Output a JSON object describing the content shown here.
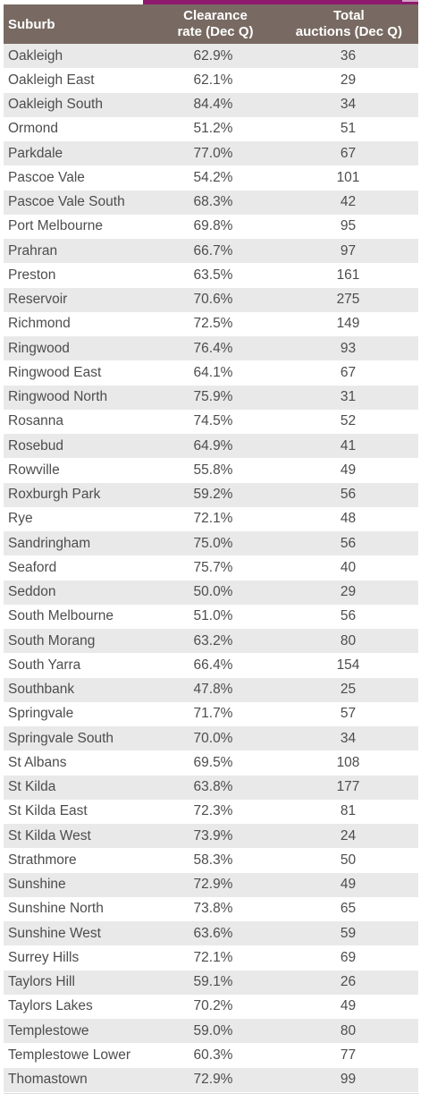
{
  "header": {
    "suburb": "Suburb",
    "clearance_line1": "Clearance",
    "clearance_line2": "rate (Dec Q)",
    "auctions_line1": "Total",
    "auctions_line2": "auctions (Dec Q)"
  },
  "rows": [
    {
      "suburb": "Oakleigh",
      "rate": "62.9%",
      "auctions": "36"
    },
    {
      "suburb": "Oakleigh East",
      "rate": "62.1%",
      "auctions": "29"
    },
    {
      "suburb": "Oakleigh South",
      "rate": "84.4%",
      "auctions": "34"
    },
    {
      "suburb": "Ormond",
      "rate": "51.2%",
      "auctions": "51"
    },
    {
      "suburb": "Parkdale",
      "rate": "77.0%",
      "auctions": "67"
    },
    {
      "suburb": "Pascoe Vale",
      "rate": "54.2%",
      "auctions": "101"
    },
    {
      "suburb": "Pascoe Vale South",
      "rate": "68.3%",
      "auctions": "42"
    },
    {
      "suburb": "Port Melbourne",
      "rate": "69.8%",
      "auctions": "95"
    },
    {
      "suburb": "Prahran",
      "rate": "66.7%",
      "auctions": "97"
    },
    {
      "suburb": "Preston",
      "rate": "63.5%",
      "auctions": "161"
    },
    {
      "suburb": "Reservoir",
      "rate": "70.6%",
      "auctions": "275"
    },
    {
      "suburb": "Richmond",
      "rate": "72.5%",
      "auctions": "149"
    },
    {
      "suburb": "Ringwood",
      "rate": "76.4%",
      "auctions": "93"
    },
    {
      "suburb": "Ringwood East",
      "rate": "64.1%",
      "auctions": "67"
    },
    {
      "suburb": "Ringwood North",
      "rate": "75.9%",
      "auctions": "31"
    },
    {
      "suburb": "Rosanna",
      "rate": "74.5%",
      "auctions": "52"
    },
    {
      "suburb": "Rosebud",
      "rate": "64.9%",
      "auctions": "41"
    },
    {
      "suburb": "Rowville",
      "rate": "55.8%",
      "auctions": "49"
    },
    {
      "suburb": "Roxburgh Park",
      "rate": "59.2%",
      "auctions": "56"
    },
    {
      "suburb": "Rye",
      "rate": "72.1%",
      "auctions": "48"
    },
    {
      "suburb": "Sandringham",
      "rate": "75.0%",
      "auctions": "56"
    },
    {
      "suburb": "Seaford",
      "rate": "75.7%",
      "auctions": "40"
    },
    {
      "suburb": "Seddon",
      "rate": "50.0%",
      "auctions": "29"
    },
    {
      "suburb": "South Melbourne",
      "rate": "51.0%",
      "auctions": "56"
    },
    {
      "suburb": "South Morang",
      "rate": "63.2%",
      "auctions": "80"
    },
    {
      "suburb": "South Yarra",
      "rate": "66.4%",
      "auctions": "154"
    },
    {
      "suburb": "Southbank",
      "rate": "47.8%",
      "auctions": "25"
    },
    {
      "suburb": "Springvale",
      "rate": "71.7%",
      "auctions": "57"
    },
    {
      "suburb": "Springvale South",
      "rate": "70.0%",
      "auctions": "34"
    },
    {
      "suburb": "St Albans",
      "rate": "69.5%",
      "auctions": "108"
    },
    {
      "suburb": "St Kilda",
      "rate": "63.8%",
      "auctions": "177"
    },
    {
      "suburb": "St Kilda East",
      "rate": "72.3%",
      "auctions": "81"
    },
    {
      "suburb": "St Kilda West",
      "rate": "73.9%",
      "auctions": "24"
    },
    {
      "suburb": "Strathmore",
      "rate": "58.3%",
      "auctions": "50"
    },
    {
      "suburb": "Sunshine",
      "rate": "72.9%",
      "auctions": "49"
    },
    {
      "suburb": "Sunshine North",
      "rate": "73.8%",
      "auctions": "65"
    },
    {
      "suburb": "Sunshine West",
      "rate": "63.6%",
      "auctions": "59"
    },
    {
      "suburb": "Surrey Hills",
      "rate": "72.1%",
      "auctions": "69"
    },
    {
      "suburb": "Taylors Hill",
      "rate": "59.1%",
      "auctions": "26"
    },
    {
      "suburb": "Taylors Lakes",
      "rate": "70.2%",
      "auctions": "49"
    },
    {
      "suburb": "Templestowe",
      "rate": "59.0%",
      "auctions": "80"
    },
    {
      "suburb": "Templestowe Lower",
      "rate": "60.3%",
      "auctions": "77"
    },
    {
      "suburb": "Thomastown",
      "rate": "72.9%",
      "auctions": "99"
    }
  ],
  "colors": {
    "header_bg": "#786a62",
    "accent_bar": "#8e1a6e",
    "stripe": "#e9e9e9"
  }
}
